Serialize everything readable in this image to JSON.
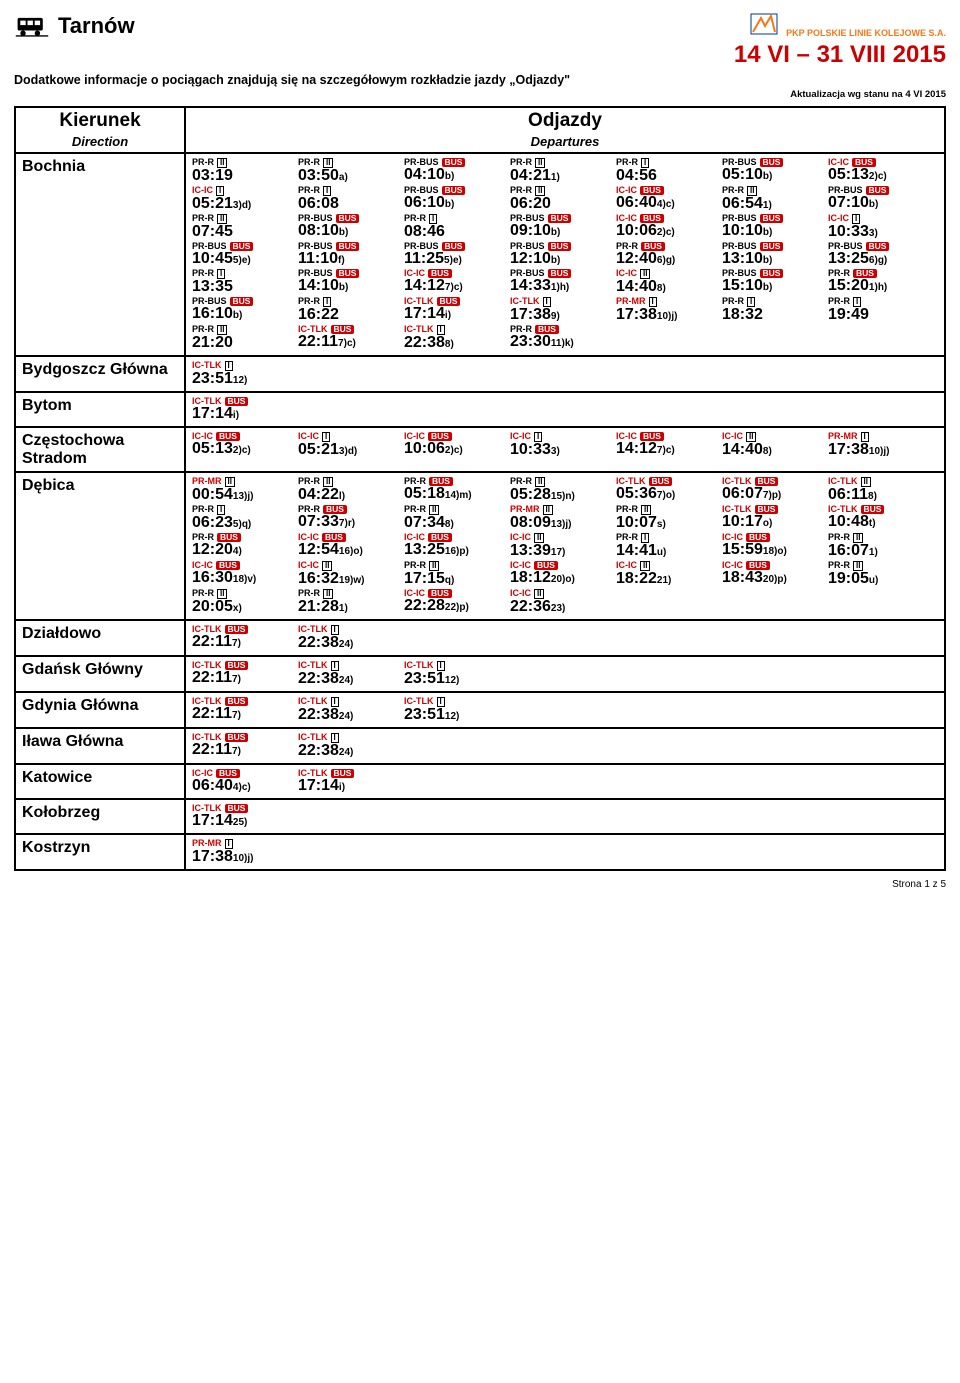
{
  "header": {
    "station": "Tarnów",
    "brand_text": "PKP POLSKIE LINIE KOLEJOWE S.A.",
    "date_range": "14 VI – 31 VIII 2015",
    "subtitle": "Dodatkowe informacje o pociągach znajdują się na szczegółowym rozkładzie jazdy „Odjazdy\"",
    "update_note": "Aktualizacja wg stanu na 4 VI 2015",
    "footer": "Strona 1 z 5"
  },
  "table_header": {
    "col1_top": "Kierunek",
    "col1_sub": "Direction",
    "col2_top": "Odjazdy",
    "col2_sub": "Departures"
  },
  "colors": {
    "red": "#cc0000",
    "orange": "#f07a1a",
    "black": "#000000",
    "white": "#ffffff"
  },
  "rows": [
    {
      "destination": "Bochnia",
      "times": [
        {
          "svc": "PR-R",
          "red": false,
          "cls": "II",
          "bus": false,
          "time": "03:19",
          "suf": ""
        },
        {
          "svc": "PR-R",
          "red": false,
          "cls": "II",
          "bus": false,
          "time": "03:50",
          "suf": "a)"
        },
        {
          "svc": "PR-BUS",
          "red": false,
          "cls": "",
          "bus": true,
          "time": "04:10",
          "suf": "b)"
        },
        {
          "svc": "PR-R",
          "red": false,
          "cls": "II",
          "bus": false,
          "time": "04:21",
          "suf": "1)"
        },
        {
          "svc": "PR-R",
          "red": false,
          "cls": "I",
          "bus": false,
          "time": "04:56",
          "suf": ""
        },
        {
          "svc": "PR-BUS",
          "red": false,
          "cls": "",
          "bus": true,
          "time": "05:10",
          "suf": "b)"
        },
        {
          "svc": "IC-IC",
          "red": true,
          "cls": "",
          "bus": true,
          "time": "05:13",
          "suf": "2)c)"
        },
        {
          "svc": "IC-IC",
          "red": true,
          "cls": "I",
          "bus": false,
          "time": "05:21",
          "suf": "3)d)"
        },
        {
          "svc": "PR-R",
          "red": false,
          "cls": "I",
          "bus": false,
          "time": "06:08",
          "suf": ""
        },
        {
          "svc": "PR-BUS",
          "red": false,
          "cls": "",
          "bus": true,
          "time": "06:10",
          "suf": "b)"
        },
        {
          "svc": "PR-R",
          "red": false,
          "cls": "II",
          "bus": false,
          "time": "06:20",
          "suf": ""
        },
        {
          "svc": "IC-IC",
          "red": true,
          "cls": "",
          "bus": true,
          "time": "06:40",
          "suf": "4)c)"
        },
        {
          "svc": "PR-R",
          "red": false,
          "cls": "II",
          "bus": false,
          "time": "06:54",
          "suf": "1)"
        },
        {
          "svc": "PR-BUS",
          "red": false,
          "cls": "",
          "bus": true,
          "time": "07:10",
          "suf": "b)"
        },
        {
          "svc": "PR-R",
          "red": false,
          "cls": "II",
          "bus": false,
          "time": "07:45",
          "suf": ""
        },
        {
          "svc": "PR-BUS",
          "red": false,
          "cls": "",
          "bus": true,
          "time": "08:10",
          "suf": "b)"
        },
        {
          "svc": "PR-R",
          "red": false,
          "cls": "I",
          "bus": false,
          "time": "08:46",
          "suf": ""
        },
        {
          "svc": "PR-BUS",
          "red": false,
          "cls": "",
          "bus": true,
          "time": "09:10",
          "suf": "b)"
        },
        {
          "svc": "IC-IC",
          "red": true,
          "cls": "",
          "bus": true,
          "time": "10:06",
          "suf": "2)c)"
        },
        {
          "svc": "PR-BUS",
          "red": false,
          "cls": "",
          "bus": true,
          "time": "10:10",
          "suf": "b)"
        },
        {
          "svc": "IC-IC",
          "red": true,
          "cls": "I",
          "bus": false,
          "time": "10:33",
          "suf": "3)"
        },
        {
          "svc": "PR-BUS",
          "red": false,
          "cls": "",
          "bus": true,
          "time": "10:45",
          "suf": "5)e)"
        },
        {
          "svc": "PR-BUS",
          "red": false,
          "cls": "",
          "bus": true,
          "time": "11:10",
          "suf": "f)"
        },
        {
          "svc": "PR-BUS",
          "red": false,
          "cls": "",
          "bus": true,
          "time": "11:25",
          "suf": "5)e)"
        },
        {
          "svc": "PR-BUS",
          "red": false,
          "cls": "",
          "bus": true,
          "time": "12:10",
          "suf": "b)"
        },
        {
          "svc": "PR-R",
          "red": false,
          "cls": "",
          "bus": true,
          "time": "12:40",
          "suf": "6)g)"
        },
        {
          "svc": "PR-BUS",
          "red": false,
          "cls": "",
          "bus": true,
          "time": "13:10",
          "suf": "b)"
        },
        {
          "svc": "PR-BUS",
          "red": false,
          "cls": "",
          "bus": true,
          "time": "13:25",
          "suf": "6)g)"
        },
        {
          "svc": "PR-R",
          "red": false,
          "cls": "I",
          "bus": false,
          "time": "13:35",
          "suf": ""
        },
        {
          "svc": "PR-BUS",
          "red": false,
          "cls": "",
          "bus": true,
          "time": "14:10",
          "suf": "b)"
        },
        {
          "svc": "IC-IC",
          "red": true,
          "cls": "",
          "bus": true,
          "time": "14:12",
          "suf": "7)c)"
        },
        {
          "svc": "PR-BUS",
          "red": false,
          "cls": "",
          "bus": true,
          "time": "14:33",
          "suf": "1)h)"
        },
        {
          "svc": "IC-IC",
          "red": true,
          "cls": "II",
          "bus": false,
          "time": "14:40",
          "suf": "8)"
        },
        {
          "svc": "PR-BUS",
          "red": false,
          "cls": "",
          "bus": true,
          "time": "15:10",
          "suf": "b)"
        },
        {
          "svc": "PR-R",
          "red": false,
          "cls": "",
          "bus": true,
          "time": "15:20",
          "suf": "1)h)"
        },
        {
          "svc": "PR-BUS",
          "red": false,
          "cls": "",
          "bus": true,
          "time": "16:10",
          "suf": "b)"
        },
        {
          "svc": "PR-R",
          "red": false,
          "cls": "I",
          "bus": false,
          "time": "16:22",
          "suf": ""
        },
        {
          "svc": "IC-TLK",
          "red": true,
          "cls": "",
          "bus": true,
          "time": "17:14",
          "suf": "i)"
        },
        {
          "svc": "IC-TLK",
          "red": true,
          "cls": "I",
          "bus": false,
          "time": "17:38",
          "suf": "9)"
        },
        {
          "svc": "PR-MR",
          "red": true,
          "cls": "I",
          "bus": false,
          "time": "17:38",
          "suf": "10)j)"
        },
        {
          "svc": "PR-R",
          "red": false,
          "cls": "I",
          "bus": false,
          "time": "18:32",
          "suf": ""
        },
        {
          "svc": "PR-R",
          "red": false,
          "cls": "I",
          "bus": false,
          "time": "19:49",
          "suf": ""
        },
        {
          "svc": "PR-R",
          "red": false,
          "cls": "II",
          "bus": false,
          "time": "21:20",
          "suf": ""
        },
        {
          "svc": "IC-TLK",
          "red": true,
          "cls": "",
          "bus": true,
          "time": "22:11",
          "suf": "7)c)"
        },
        {
          "svc": "IC-TLK",
          "red": true,
          "cls": "I",
          "bus": false,
          "time": "22:38",
          "suf": "8)"
        },
        {
          "svc": "PR-R",
          "red": false,
          "cls": "",
          "bus": true,
          "time": "23:30",
          "suf": "11)k)"
        }
      ]
    },
    {
      "destination": "Bydgoszcz Główna",
      "times": [
        {
          "svc": "IC-TLK",
          "red": true,
          "cls": "I",
          "bus": false,
          "time": "23:51",
          "suf": "12)"
        }
      ]
    },
    {
      "destination": "Bytom",
      "times": [
        {
          "svc": "IC-TLK",
          "red": true,
          "cls": "",
          "bus": true,
          "time": "17:14",
          "suf": "i)"
        }
      ]
    },
    {
      "destination": "Częstochowa Stradom",
      "times": [
        {
          "svc": "IC-IC",
          "red": true,
          "cls": "",
          "bus": true,
          "time": "05:13",
          "suf": "2)c)"
        },
        {
          "svc": "IC-IC",
          "red": true,
          "cls": "I",
          "bus": false,
          "time": "05:21",
          "suf": "3)d)"
        },
        {
          "svc": "IC-IC",
          "red": true,
          "cls": "",
          "bus": true,
          "time": "10:06",
          "suf": "2)c)"
        },
        {
          "svc": "IC-IC",
          "red": true,
          "cls": "I",
          "bus": false,
          "time": "10:33",
          "suf": "3)"
        },
        {
          "svc": "IC-IC",
          "red": true,
          "cls": "",
          "bus": true,
          "time": "14:12",
          "suf": "7)c)"
        },
        {
          "svc": "IC-IC",
          "red": true,
          "cls": "II",
          "bus": false,
          "time": "14:40",
          "suf": "8)"
        },
        {
          "svc": "PR-MR",
          "red": true,
          "cls": "I",
          "bus": false,
          "time": "17:38",
          "suf": "10)j)"
        }
      ]
    },
    {
      "destination": "Dębica",
      "times": [
        {
          "svc": "PR-MR",
          "red": true,
          "cls": "II",
          "bus": false,
          "time": "00:54",
          "suf": "13)j)"
        },
        {
          "svc": "PR-R",
          "red": false,
          "cls": "II",
          "bus": false,
          "time": "04:22",
          "suf": "l)"
        },
        {
          "svc": "PR-R",
          "red": false,
          "cls": "",
          "bus": true,
          "time": "05:18",
          "suf": "14)m)"
        },
        {
          "svc": "PR-R",
          "red": false,
          "cls": "II",
          "bus": false,
          "time": "05:28",
          "suf": "15)n)"
        },
        {
          "svc": "IC-TLK",
          "red": true,
          "cls": "",
          "bus": true,
          "time": "05:36",
          "suf": "7)o)"
        },
        {
          "svc": "IC-TLK",
          "red": true,
          "cls": "",
          "bus": true,
          "time": "06:07",
          "suf": "7)p)"
        },
        {
          "svc": "IC-TLK",
          "red": true,
          "cls": "II",
          "bus": false,
          "time": "06:11",
          "suf": "8)"
        },
        {
          "svc": "PR-R",
          "red": false,
          "cls": "I",
          "bus": false,
          "time": "06:23",
          "suf": "5)q)"
        },
        {
          "svc": "PR-R",
          "red": false,
          "cls": "",
          "bus": true,
          "time": "07:33",
          "suf": "7)r)"
        },
        {
          "svc": "PR-R",
          "red": false,
          "cls": "II",
          "bus": false,
          "time": "07:34",
          "suf": "8)"
        },
        {
          "svc": "PR-MR",
          "red": true,
          "cls": "II",
          "bus": false,
          "time": "08:09",
          "suf": "13)j)"
        },
        {
          "svc": "PR-R",
          "red": false,
          "cls": "II",
          "bus": false,
          "time": "10:07",
          "suf": "s)"
        },
        {
          "svc": "IC-TLK",
          "red": true,
          "cls": "",
          "bus": true,
          "time": "10:17",
          "suf": "o)"
        },
        {
          "svc": "IC-TLK",
          "red": true,
          "cls": "",
          "bus": true,
          "time": "10:48",
          "suf": "t)"
        },
        {
          "svc": "PR-R",
          "red": false,
          "cls": "",
          "bus": true,
          "time": "12:20",
          "suf": "4)"
        },
        {
          "svc": "IC-IC",
          "red": true,
          "cls": "",
          "bus": true,
          "time": "12:54",
          "suf": "16)o)"
        },
        {
          "svc": "IC-IC",
          "red": true,
          "cls": "",
          "bus": true,
          "time": "13:25",
          "suf": "16)p)"
        },
        {
          "svc": "IC-IC",
          "red": true,
          "cls": "II",
          "bus": false,
          "time": "13:39",
          "suf": "17)"
        },
        {
          "svc": "PR-R",
          "red": false,
          "cls": "I",
          "bus": false,
          "time": "14:41",
          "suf": "u)"
        },
        {
          "svc": "IC-IC",
          "red": true,
          "cls": "",
          "bus": true,
          "time": "15:59",
          "suf": "18)o)"
        },
        {
          "svc": "PR-R",
          "red": false,
          "cls": "II",
          "bus": false,
          "time": "16:07",
          "suf": "1)"
        },
        {
          "svc": "IC-IC",
          "red": true,
          "cls": "",
          "bus": true,
          "time": "16:30",
          "suf": "18)v)"
        },
        {
          "svc": "IC-IC",
          "red": true,
          "cls": "II",
          "bus": false,
          "time": "16:32",
          "suf": "19)w)"
        },
        {
          "svc": "PR-R",
          "red": false,
          "cls": "II",
          "bus": false,
          "time": "17:15",
          "suf": "q)"
        },
        {
          "svc": "IC-IC",
          "red": true,
          "cls": "",
          "bus": true,
          "time": "18:12",
          "suf": "20)o)"
        },
        {
          "svc": "IC-IC",
          "red": true,
          "cls": "II",
          "bus": false,
          "time": "18:22",
          "suf": "21)"
        },
        {
          "svc": "IC-IC",
          "red": true,
          "cls": "",
          "bus": true,
          "time": "18:43",
          "suf": "20)p)"
        },
        {
          "svc": "PR-R",
          "red": false,
          "cls": "II",
          "bus": false,
          "time": "19:05",
          "suf": "u)"
        },
        {
          "svc": "PR-R",
          "red": false,
          "cls": "II",
          "bus": false,
          "time": "20:05",
          "suf": "x)"
        },
        {
          "svc": "PR-R",
          "red": false,
          "cls": "II",
          "bus": false,
          "time": "21:28",
          "suf": "1)"
        },
        {
          "svc": "IC-IC",
          "red": true,
          "cls": "",
          "bus": true,
          "time": "22:28",
          "suf": "22)p)"
        },
        {
          "svc": "IC-IC",
          "red": true,
          "cls": "II",
          "bus": false,
          "time": "22:36",
          "suf": "23)"
        }
      ]
    },
    {
      "destination": "Działdowo",
      "times": [
        {
          "svc": "IC-TLK",
          "red": true,
          "cls": "",
          "bus": true,
          "time": "22:11",
          "suf": "7)"
        },
        {
          "svc": "IC-TLK",
          "red": true,
          "cls": "I",
          "bus": false,
          "time": "22:38",
          "suf": "24)"
        }
      ]
    },
    {
      "destination": "Gdańsk Główny",
      "times": [
        {
          "svc": "IC-TLK",
          "red": true,
          "cls": "",
          "bus": true,
          "time": "22:11",
          "suf": "7)"
        },
        {
          "svc": "IC-TLK",
          "red": true,
          "cls": "I",
          "bus": false,
          "time": "22:38",
          "suf": "24)"
        },
        {
          "svc": "IC-TLK",
          "red": true,
          "cls": "I",
          "bus": false,
          "time": "23:51",
          "suf": "12)"
        }
      ]
    },
    {
      "destination": "Gdynia Główna",
      "times": [
        {
          "svc": "IC-TLK",
          "red": true,
          "cls": "",
          "bus": true,
          "time": "22:11",
          "suf": "7)"
        },
        {
          "svc": "IC-TLK",
          "red": true,
          "cls": "I",
          "bus": false,
          "time": "22:38",
          "suf": "24)"
        },
        {
          "svc": "IC-TLK",
          "red": true,
          "cls": "I",
          "bus": false,
          "time": "23:51",
          "suf": "12)"
        }
      ]
    },
    {
      "destination": "Iława Główna",
      "times": [
        {
          "svc": "IC-TLK",
          "red": true,
          "cls": "",
          "bus": true,
          "time": "22:11",
          "suf": "7)"
        },
        {
          "svc": "IC-TLK",
          "red": true,
          "cls": "I",
          "bus": false,
          "time": "22:38",
          "suf": "24)"
        }
      ]
    },
    {
      "destination": "Katowice",
      "times": [
        {
          "svc": "IC-IC",
          "red": true,
          "cls": "",
          "bus": true,
          "time": "06:40",
          "suf": "4)c)"
        },
        {
          "svc": "IC-TLK",
          "red": true,
          "cls": "",
          "bus": true,
          "time": "17:14",
          "suf": "i)"
        }
      ]
    },
    {
      "destination": "Kołobrzeg",
      "times": [
        {
          "svc": "IC-TLK",
          "red": true,
          "cls": "",
          "bus": true,
          "time": "17:14",
          "suf": "25)"
        }
      ]
    },
    {
      "destination": "Kostrzyn",
      "times": [
        {
          "svc": "PR-MR",
          "red": true,
          "cls": "I",
          "bus": false,
          "time": "17:38",
          "suf": "10)j)"
        }
      ]
    }
  ]
}
